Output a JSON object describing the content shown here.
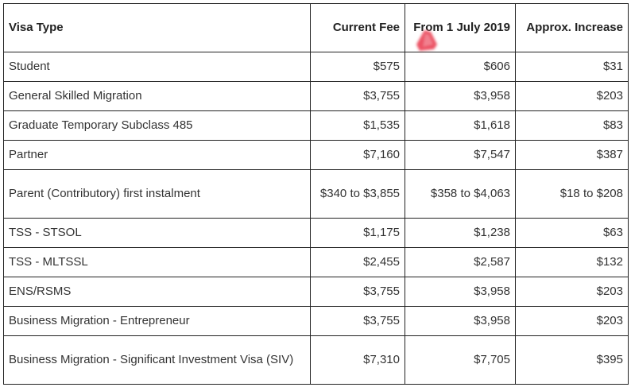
{
  "table": {
    "headers": [
      "Visa Type",
      "Current Fee",
      "From 1 July 2019",
      "Approx. Increase"
    ],
    "rows": [
      [
        "Student",
        "$575",
        "$606",
        "$31"
      ],
      [
        "General Skilled Migration",
        "$3,755",
        "$3,958",
        "$203"
      ],
      [
        "Graduate Temporary Subclass 485",
        "$1,535",
        "$1,618",
        "$83"
      ],
      [
        "Partner",
        "$7,160",
        "$7,547",
        "$387"
      ],
      [
        "Parent (Contributory) first instalment",
        "$340 to $3,855",
        "$358 to $4,063",
        "$18 to $208"
      ],
      [
        "TSS - STSOL",
        "$1,175",
        "$1,238",
        "$63"
      ],
      [
        "TSS - MLTSSL",
        "$2,455",
        "$2,587",
        "$132"
      ],
      [
        "ENS/RSMS",
        "$3,755",
        "$3,958",
        "$203"
      ],
      [
        "Business Migration - Entrepreneur",
        "$3,755",
        "$3,958",
        "$203"
      ],
      [
        "Business Migration - Significant Investment Visa (SIV)",
        "$7,310",
        "$7,705",
        "$395"
      ]
    ]
  },
  "colors": {
    "border": "#222222",
    "text": "#333333",
    "mark": "#e8344a"
  }
}
